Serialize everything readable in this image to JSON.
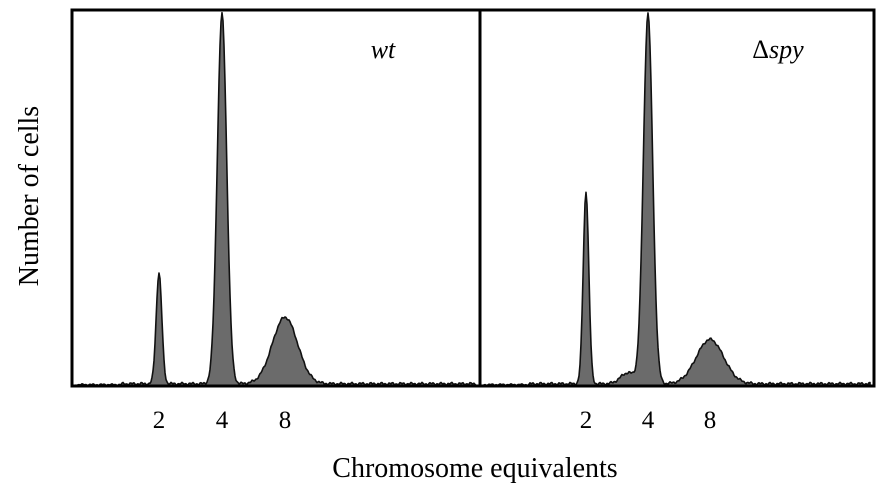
{
  "chart_data": {
    "type": "area",
    "xlabel": "Chromosome equivalents",
    "ylabel": "Number of cells",
    "x_ticks": [
      2,
      4,
      8
    ],
    "colors": {
      "fill": "#6b6b6b",
      "edge": "#111111",
      "frame": "#000000"
    },
    "panels": [
      {
        "label_main": "wt",
        "label_prefix": "",
        "peaks": [
          {
            "x": 2,
            "height": 0.3,
            "width": 0.045
          },
          {
            "x": 4,
            "height": 1.0,
            "width": 0.075
          },
          {
            "x": 8,
            "height": 0.18,
            "width": 0.2
          }
        ]
      },
      {
        "label_main": "spy",
        "label_prefix": "Δ",
        "peaks": [
          {
            "x": 2,
            "height": 0.52,
            "width": 0.045
          },
          {
            "x": 3.2,
            "height": 0.03,
            "width": 0.12
          },
          {
            "x": 4,
            "height": 1.0,
            "width": 0.075
          },
          {
            "x": 8,
            "height": 0.12,
            "width": 0.22
          }
        ]
      }
    ]
  }
}
